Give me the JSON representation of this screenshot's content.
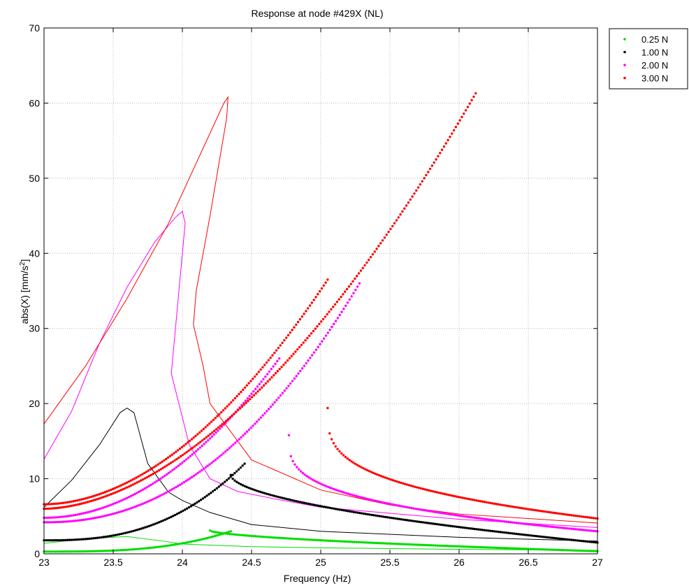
{
  "chart_data": {
    "type": "scatter",
    "title": "Response at node #429X (NL)",
    "xlabel": "Frequency (Hz)",
    "ylabel_main": "abs(X) [mm/s",
    "ylabel_sup": "2",
    "ylabel_end": "]",
    "xlim": [
      23,
      27
    ],
    "ylim": [
      0,
      70
    ],
    "x_ticks": [
      23,
      23.5,
      24,
      24.5,
      25,
      25.5,
      26,
      26.5,
      27
    ],
    "x_tick_labels": [
      "23",
      "23.5",
      "24",
      "24.5",
      "25",
      "25.5",
      "26",
      "26.5",
      "27"
    ],
    "y_ticks": [
      0,
      10,
      20,
      30,
      40,
      50,
      60,
      70
    ],
    "y_tick_labels": [
      "0",
      "10",
      "20",
      "30",
      "40",
      "50",
      "60",
      "70"
    ],
    "grid": true,
    "legend_position": "outside-top-right",
    "series": [
      {
        "name": "0.25 N",
        "color": "#00dd00",
        "measured": [
          {
            "from": 23.0,
            "to": 24.35,
            "y0": 0.3,
            "y1": 3.0,
            "curve": 3.0
          },
          {
            "from": 24.2,
            "to": 27.0,
            "y0": 3.1,
            "y1": 0.35,
            "curve": 0.6
          }
        ],
        "measured_upper": [],
        "model": [
          [
            23.0,
            1.4
          ],
          [
            23.3,
            2.0
          ],
          [
            23.6,
            2.3
          ],
          [
            23.9,
            1.6
          ],
          [
            24.0,
            1.3
          ],
          [
            24.5,
            0.95
          ],
          [
            25.0,
            0.8
          ],
          [
            26.0,
            0.6
          ],
          [
            27.0,
            0.45
          ]
        ]
      },
      {
        "name": "1.00 N",
        "color": "#000000",
        "measured": [
          {
            "from": 23.0,
            "to": 24.45,
            "y0": 1.8,
            "y1": 12.0,
            "curve": 2.6
          },
          {
            "from": 24.35,
            "to": 27.0,
            "y0": 10.5,
            "y1": 1.5,
            "curve": 0.55
          }
        ],
        "measured_upper": [],
        "model": [
          [
            23.0,
            6.2
          ],
          [
            23.2,
            9.8
          ],
          [
            23.4,
            14.5
          ],
          [
            23.55,
            18.8
          ],
          [
            23.6,
            19.4
          ],
          [
            23.65,
            18.8
          ],
          [
            23.75,
            12.0
          ],
          [
            23.9,
            8.2
          ],
          [
            24.0,
            7.1
          ],
          [
            24.2,
            5.5
          ],
          [
            24.5,
            3.9
          ],
          [
            25.0,
            3.0
          ],
          [
            26.0,
            2.2
          ],
          [
            27.0,
            1.7
          ]
        ]
      },
      {
        "name": "2.00 N",
        "color": "#ff00ff",
        "measured": [
          {
            "from": 23.0,
            "to": 25.28,
            "y0": 4.2,
            "y1": 36.0,
            "curve": 2.2
          },
          {
            "from": 24.77,
            "to": 27.0,
            "y0": 15.8,
            "y1": 3.0,
            "curve": 0.3
          }
        ],
        "measured_upper": [
          {
            "from": 23.0,
            "to": 24.7,
            "y0": 4.8,
            "y1": 26.0,
            "curve": 2.0
          }
        ],
        "model": [
          [
            23.0,
            12.6
          ],
          [
            23.2,
            19.0
          ],
          [
            23.4,
            28.0
          ],
          [
            23.6,
            35.5
          ],
          [
            23.8,
            41.5
          ],
          [
            23.95,
            44.8
          ],
          [
            24.0,
            45.6
          ],
          [
            24.02,
            44.0
          ],
          [
            23.97,
            34.0
          ],
          [
            23.92,
            24.0
          ],
          [
            24.05,
            14.5
          ],
          [
            24.2,
            10.0
          ],
          [
            24.4,
            8.3
          ],
          [
            24.7,
            7.2
          ],
          [
            25.0,
            6.2
          ],
          [
            25.5,
            5.4
          ],
          [
            26.0,
            4.6
          ],
          [
            27.0,
            3.5
          ]
        ]
      },
      {
        "name": "3.00 N",
        "color": "#ff0000",
        "measured": [
          {
            "from": 23.0,
            "to": 26.12,
            "y0": 6.0,
            "y1": 61.3,
            "curve": 1.8
          },
          {
            "from": 25.05,
            "to": 27.0,
            "y0": 19.4,
            "y1": 4.7,
            "curve": 0.3
          }
        ],
        "measured_upper": [
          {
            "from": 23.0,
            "to": 25.05,
            "y0": 6.6,
            "y1": 36.5,
            "curve": 1.9
          }
        ],
        "model": [
          [
            23.0,
            17.3
          ],
          [
            23.3,
            25.0
          ],
          [
            23.6,
            34.0
          ],
          [
            23.9,
            44.0
          ],
          [
            24.0,
            48.0
          ],
          [
            24.3,
            60.0
          ],
          [
            24.33,
            60.8
          ],
          [
            24.32,
            58.0
          ],
          [
            24.2,
            45.0
          ],
          [
            24.1,
            35.0
          ],
          [
            24.08,
            30.5
          ],
          [
            24.15,
            25.0
          ],
          [
            24.2,
            20.0
          ],
          [
            24.5,
            12.5
          ],
          [
            25.0,
            8.5
          ],
          [
            25.5,
            6.5
          ],
          [
            26.0,
            5.3
          ],
          [
            27.0,
            4.1
          ]
        ]
      }
    ]
  }
}
